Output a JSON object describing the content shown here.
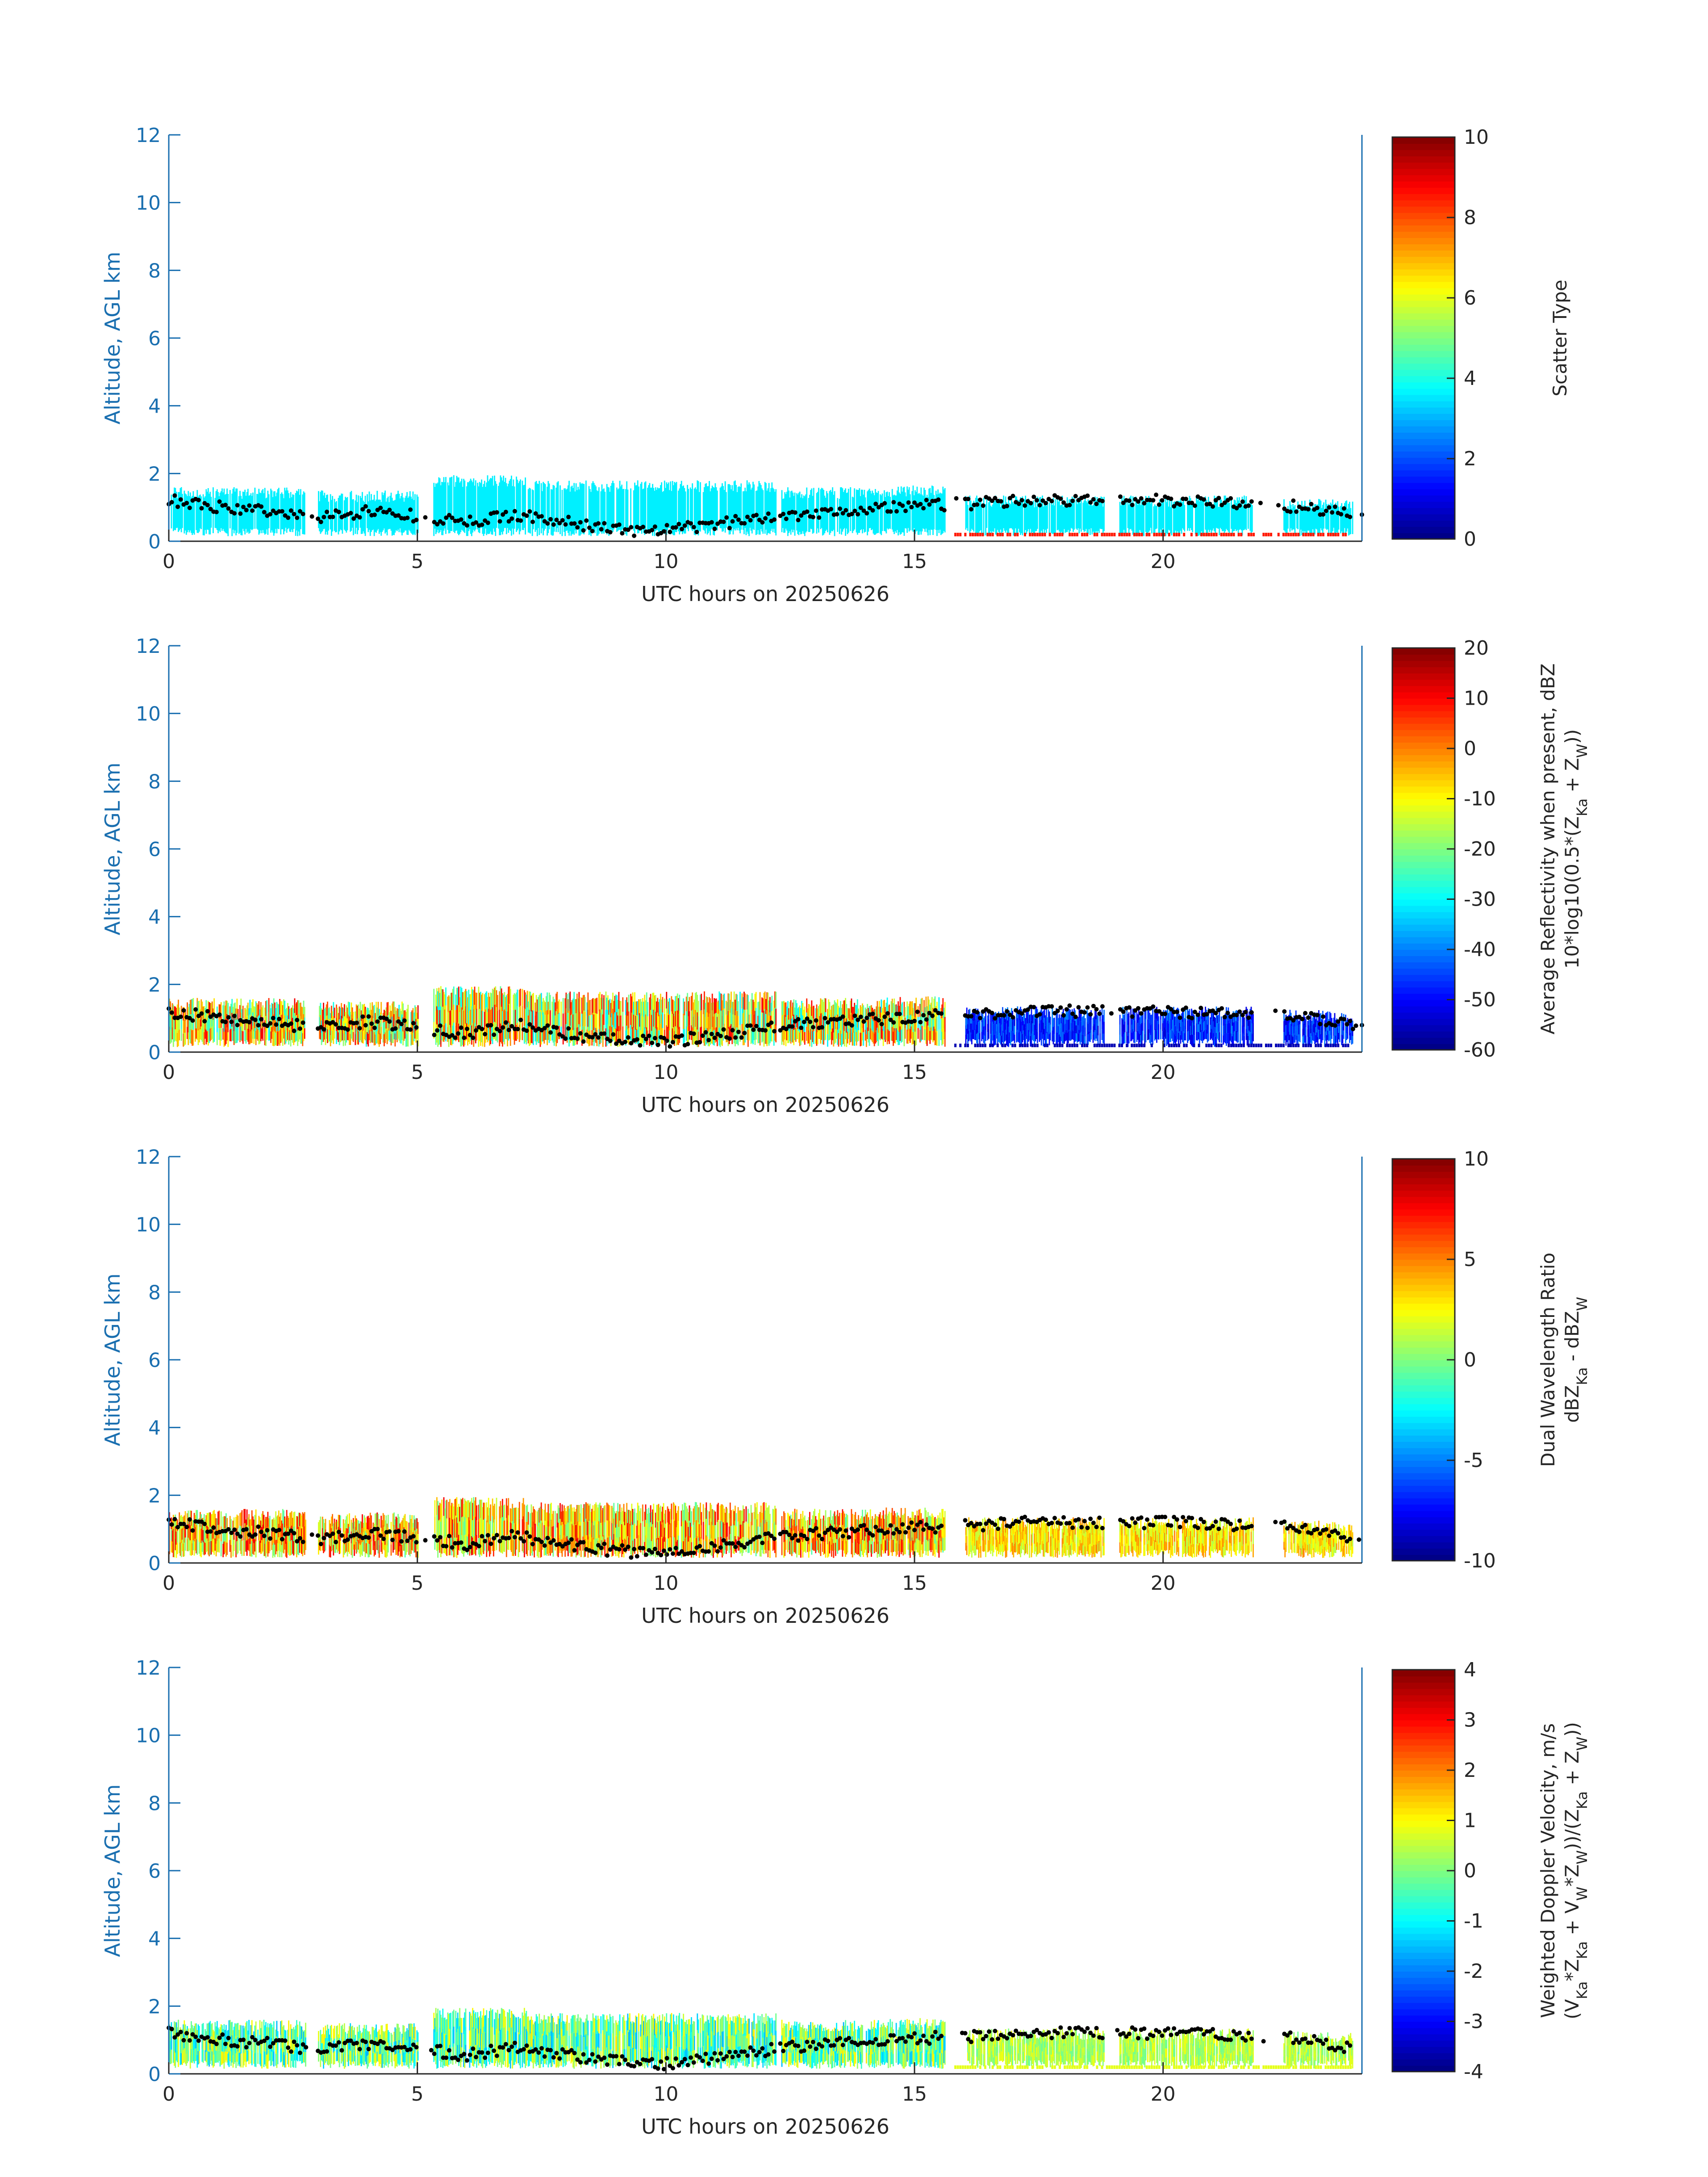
{
  "figure": {
    "x_tick_labels": [
      "0",
      "5",
      "10",
      "15",
      "20"
    ],
    "y_tick_labels": [
      "0",
      "2",
      "4",
      "6",
      "8",
      "10",
      "12"
    ],
    "colors": {
      "axis_left": "#1a6fb0",
      "axis_text": "#262626",
      "cloud_base_dots": "#000000"
    },
    "colormap": "jet"
  },
  "chart_data": [
    {
      "type": "heatmap",
      "xlabel": "UTC hours on 20250626",
      "ylabel": "Altitude, AGL km",
      "xlim": [
        0,
        24
      ],
      "ylim": [
        0,
        12
      ],
      "xticks": [
        0,
        5,
        10,
        15,
        20
      ],
      "yticks": [
        0,
        2,
        4,
        6,
        8,
        10,
        12
      ],
      "colorbar": {
        "label_lines": [
          "Scatter Type"
        ],
        "range": [
          0,
          10
        ],
        "ticks": [
          "0",
          "2",
          "4",
          "6",
          "8",
          "10"
        ]
      },
      "dominant_value": 3.6,
      "variant": "scatter"
    },
    {
      "type": "heatmap",
      "xlabel": "UTC hours on 20250626",
      "ylabel": "Altitude, AGL km",
      "xlim": [
        0,
        24
      ],
      "ylim": [
        0,
        12
      ],
      "xticks": [
        0,
        5,
        10,
        15,
        20
      ],
      "yticks": [
        0,
        2,
        4,
        6,
        8,
        10,
        12
      ],
      "colorbar": {
        "label_lines": [
          "Average Reflectivity when present, dBZ",
          "10*log10(0.5*(Z_Ka + Z_W))"
        ],
        "range": [
          -60,
          20
        ],
        "ticks": [
          "-60",
          "-50",
          "-40",
          "-30",
          "-20",
          "-10",
          "0",
          "10",
          "20"
        ]
      },
      "variant": "reflectivity"
    },
    {
      "type": "heatmap",
      "xlabel": "UTC hours on 20250626",
      "ylabel": "Altitude, AGL km",
      "xlim": [
        0,
        24
      ],
      "ylim": [
        0,
        12
      ],
      "xticks": [
        0,
        5,
        10,
        15,
        20
      ],
      "yticks": [
        0,
        2,
        4,
        6,
        8,
        10,
        12
      ],
      "colorbar": {
        "label_lines": [
          "Dual Wavelength Ratio",
          "dBZ_Ka - dBZ_W"
        ],
        "range": [
          -10,
          10
        ],
        "ticks": [
          "-10",
          "-5",
          "0",
          "5",
          "10"
        ]
      },
      "variant": "dwr"
    },
    {
      "type": "heatmap",
      "xlabel": "UTC hours on 20250626",
      "ylabel": "Altitude, AGL km",
      "xlim": [
        0,
        24
      ],
      "ylim": [
        0,
        12
      ],
      "xticks": [
        0,
        5,
        10,
        15,
        20
      ],
      "yticks": [
        0,
        2,
        4,
        6,
        8,
        10,
        12
      ],
      "colorbar": {
        "label_lines": [
          "Weighted Doppler Velocity, m/s",
          "(V_Ka*Z_Ka + V_W*Z_W))/(Z_Ka + Z_W))"
        ],
        "range": [
          -4,
          4
        ],
        "ticks": [
          "-4",
          "-3",
          "-2",
          "-1",
          "0",
          "1",
          "2",
          "3",
          "4"
        ]
      },
      "variant": "velocity"
    }
  ],
  "cloud_segments": [
    {
      "start": 0.0,
      "end": 2.75,
      "top_km": 1.6
    },
    {
      "start": 3.0,
      "end": 5.0,
      "top_km": 1.5
    },
    {
      "start": 5.3,
      "end": 7.2,
      "top_km": 1.95
    },
    {
      "start": 7.2,
      "end": 12.2,
      "top_km": 1.8
    },
    {
      "start": 12.3,
      "end": 14.3,
      "top_km": 1.6
    },
    {
      "start": 14.3,
      "end": 15.6,
      "top_km": 1.65
    },
    {
      "start": 16.0,
      "end": 18.8,
      "top_km": 1.35
    },
    {
      "start": 19.1,
      "end": 21.8,
      "top_km": 1.35
    },
    {
      "start": 22.4,
      "end": 23.8,
      "top_km": 1.25
    }
  ],
  "cloud_base_km": [
    [
      0.0,
      1.2
    ],
    [
      1.0,
      1.0
    ],
    [
      2.0,
      0.9
    ],
    [
      3.0,
      0.7
    ],
    [
      4.0,
      0.9
    ],
    [
      5.0,
      0.75
    ],
    [
      6.0,
      0.55
    ],
    [
      7.0,
      0.8
    ],
    [
      8.0,
      0.55
    ],
    [
      9.0,
      0.35
    ],
    [
      10.0,
      0.3
    ],
    [
      11.0,
      0.5
    ],
    [
      12.0,
      0.7
    ],
    [
      13.0,
      0.85
    ],
    [
      14.0,
      0.95
    ],
    [
      15.0,
      1.05
    ],
    [
      16.0,
      1.1
    ],
    [
      17.0,
      1.2
    ],
    [
      18.0,
      1.2
    ],
    [
      19.0,
      1.2
    ],
    [
      20.0,
      1.2
    ],
    [
      21.0,
      1.15
    ],
    [
      22.0,
      1.1
    ],
    [
      23.0,
      1.0
    ],
    [
      24.0,
      0.7
    ]
  ]
}
